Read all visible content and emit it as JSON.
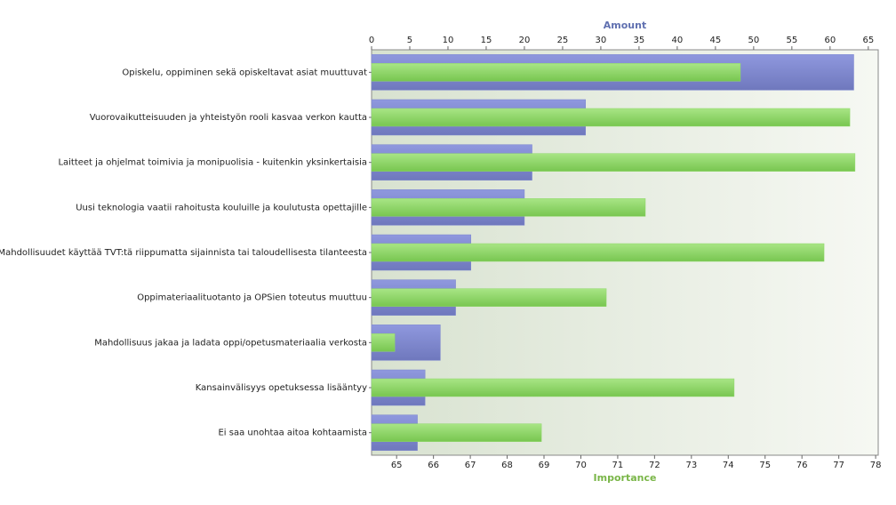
{
  "chart_data": {
    "type": "bar",
    "orientation": "horizontal",
    "categories": [
      "Opiskelu, oppiminen sekä opiskeltavat asiat muuttuvat",
      "Vuorovaikutteisuuden ja yhteistyön rooli kasvaa verkon kautta",
      "Laitteet ja ohjelmat toimivia ja monipuolisia - kuitenkin yksinkertaisia",
      "Uusi teknologia vaatii rahoitusta kouluille ja koulutusta opettajille",
      "Mahdollisuudet käyttää TVT:tä riippumatta sijainnista tai taloudellisesta tilanteesta",
      "Oppimateriaalituotanto ja OPSien toteutus muuttuu",
      "Mahdollisuus jakaa ja ladata oppi/opetusmateriaalia verkosta",
      "Kansainvälisyys opetuksessa lisääntyy",
      "Ei saa unohtaa aitoa kohtaamista"
    ],
    "series": [
      {
        "name": "Amount",
        "color": "#7d86d0",
        "axis": "x2",
        "values": [
          63.1,
          28,
          21,
          20,
          13,
          11,
          9,
          7,
          6
        ]
      },
      {
        "name": "Importance",
        "color": "#8fd86a",
        "values": [
          74.33,
          77.3,
          77.44,
          71.75,
          76.6,
          70.69,
          64.95,
          74.16,
          68.93
        ]
      }
    ],
    "xlabel": "Importance",
    "x2label": "Amount",
    "xlim": [
      64.32,
      78.07
    ],
    "xticks": [
      65,
      66,
      67,
      68,
      69,
      70,
      71,
      72,
      73,
      74,
      75,
      76,
      77,
      78
    ],
    "x2lim": [
      0,
      66.3
    ],
    "x2ticks": [
      0,
      5,
      10,
      15,
      20,
      25,
      30,
      35,
      40,
      45,
      50,
      55,
      60,
      65
    ]
  }
}
